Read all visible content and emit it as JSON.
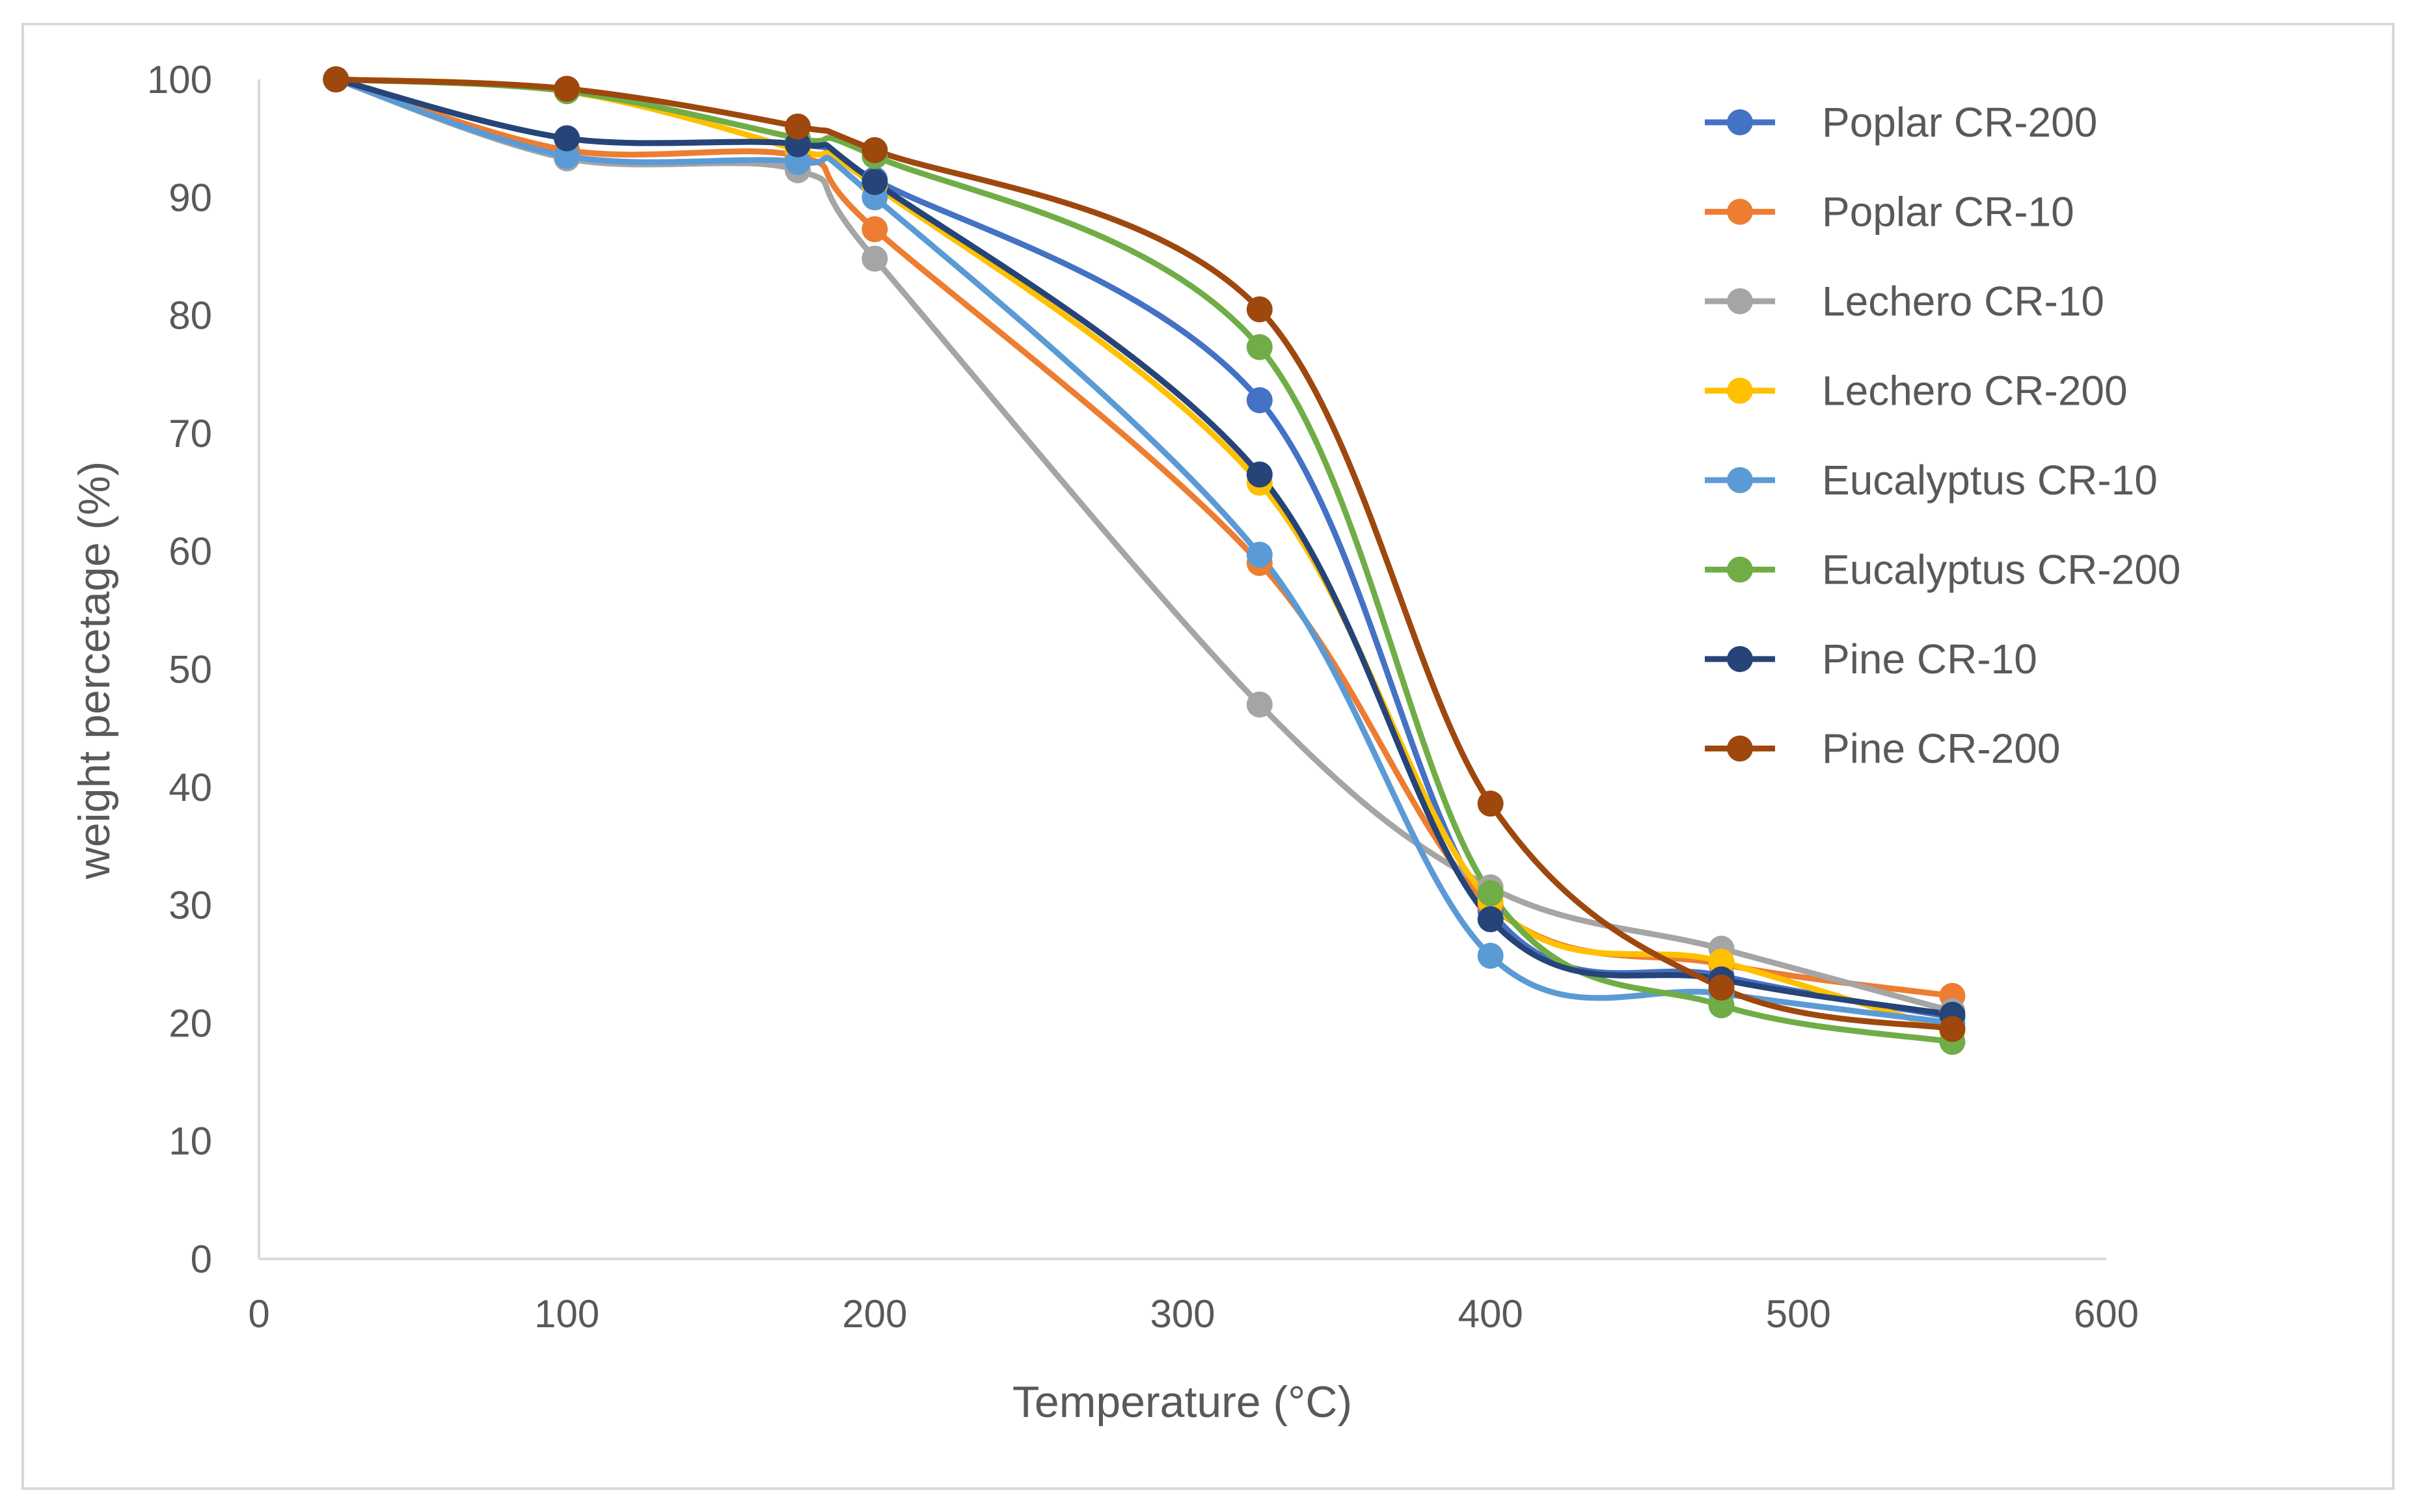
{
  "chart_data": {
    "type": "line",
    "title": "",
    "xlabel": "Temperature (°C)",
    "ylabel": "weight percetage (%)",
    "xlim": [
      0,
      600
    ],
    "ylim": [
      0,
      100
    ],
    "x_ticks": [
      "0",
      "100",
      "200",
      "300",
      "400",
      "500",
      "600"
    ],
    "y_ticks": [
      "0",
      "10",
      "20",
      "30",
      "40",
      "50",
      "60",
      "70",
      "80",
      "90",
      "100"
    ],
    "grid": false,
    "smooth": true,
    "legend_position": "right",
    "x": [
      25,
      100,
      175,
      200,
      325,
      400,
      475,
      550
    ],
    "series": [
      {
        "name": "Poplar CR-200",
        "color": "#4472c4",
        "values": [
          100,
          95.0,
          94.5,
          91.5,
          72.8,
          29.5,
          24.0,
          20.5
        ]
      },
      {
        "name": "Poplar CR-10",
        "color": "#ed7d31",
        "values": [
          100,
          94.0,
          93.5,
          87.3,
          59.0,
          30.0,
          25.0,
          22.3
        ]
      },
      {
        "name": "Lechero CR-10",
        "color": "#a5a5a5",
        "values": [
          100,
          93.3,
          92.3,
          84.8,
          47.0,
          31.5,
          26.3,
          21.0
        ]
      },
      {
        "name": "Lechero CR-200",
        "color": "#ffc000",
        "values": [
          100,
          99.0,
          94.0,
          91.0,
          65.8,
          30.3,
          25.2,
          19.3
        ]
      },
      {
        "name": "Eucalyptus CR-10",
        "color": "#5b9bd5",
        "values": [
          100,
          93.5,
          93.0,
          90.0,
          59.7,
          25.7,
          22.5,
          20.0
        ]
      },
      {
        "name": "Eucalyptus CR-200",
        "color": "#70ad47",
        "values": [
          100,
          99.0,
          95.0,
          93.5,
          77.3,
          31.0,
          21.5,
          18.4
        ]
      },
      {
        "name": "Pine CR-10",
        "color": "#264478",
        "values": [
          100,
          95.0,
          94.5,
          91.3,
          66.5,
          28.8,
          23.7,
          20.7
        ]
      },
      {
        "name": "Pine CR-200",
        "color": "#9e480e",
        "values": [
          100,
          99.2,
          96.0,
          94.0,
          80.5,
          38.6,
          23.0,
          19.5
        ]
      }
    ]
  }
}
